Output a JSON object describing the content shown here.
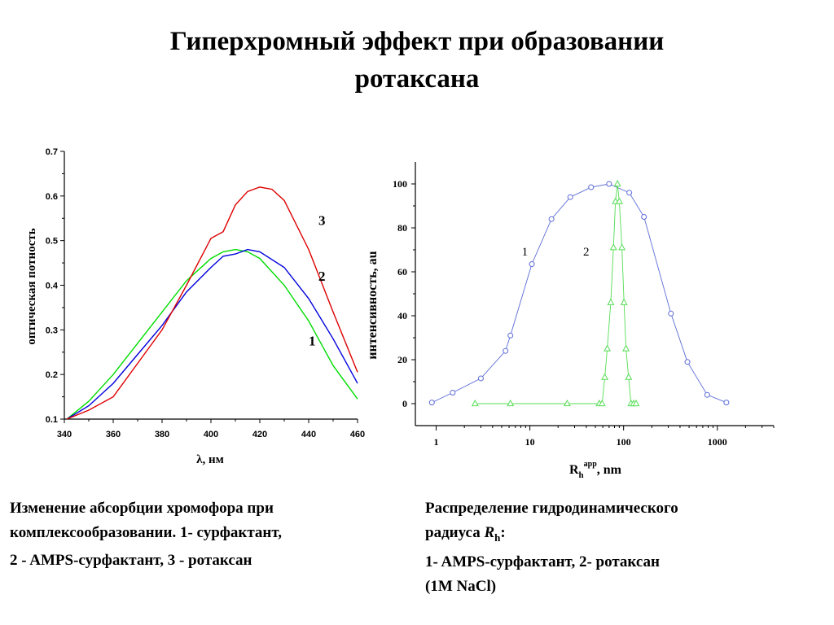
{
  "slide": {
    "title_lines": [
      "Гиперхромный эффект при образовании",
      "ротаксана"
    ],
    "caption_left": {
      "line1": "Изменение абсорбции хромофора при",
      "line2": "комплексообразовании. 1- сурфактант,",
      "line3": "2 - AMPS-сурфактант, 3 - ротаксан"
    },
    "caption_right": {
      "line1": "Распределение гидродинамического",
      "line2_prefix": "радиуса ",
      "line2_symbol": "R",
      "line2_sub": "h",
      "line2_suffix": ":",
      "line3": "1- AMPS-сурфактант, 2- ротаксан",
      "line4": "(1M NaCl)"
    }
  },
  "chart_data": [
    {
      "type": "line",
      "xlabel": "λ, нм",
      "ylabel": "оптическая потность",
      "xlim": [
        340,
        460
      ],
      "ylim": [
        0.1,
        0.7
      ],
      "xticks": [
        340,
        360,
        380,
        400,
        420,
        440,
        460
      ],
      "yticks": [
        0.1,
        0.2,
        0.3,
        0.4,
        0.5,
        0.6,
        0.7
      ],
      "grid": false,
      "series": [
        {
          "name": "1",
          "color": "#00dd00",
          "x": [
            341,
            350,
            360,
            370,
            380,
            390,
            400,
            405,
            410,
            415,
            420,
            430,
            440,
            450,
            460
          ],
          "y": [
            0.1,
            0.14,
            0.2,
            0.27,
            0.34,
            0.41,
            0.46,
            0.475,
            0.48,
            0.475,
            0.46,
            0.4,
            0.32,
            0.22,
            0.145
          ]
        },
        {
          "name": "2",
          "color": "#0000dd",
          "x": [
            341,
            350,
            360,
            370,
            380,
            390,
            400,
            405,
            410,
            415,
            420,
            430,
            440,
            450,
            460
          ],
          "y": [
            0.1,
            0.13,
            0.18,
            0.245,
            0.31,
            0.385,
            0.44,
            0.465,
            0.47,
            0.48,
            0.475,
            0.44,
            0.37,
            0.28,
            0.18
          ]
        },
        {
          "name": "3",
          "color": "#dd0000",
          "x": [
            341,
            350,
            360,
            370,
            380,
            390,
            400,
            405,
            410,
            415,
            420,
            425,
            430,
            440,
            450,
            460
          ],
          "y": [
            0.1,
            0.12,
            0.15,
            0.225,
            0.3,
            0.4,
            0.505,
            0.52,
            0.58,
            0.61,
            0.62,
            0.615,
            0.59,
            0.48,
            0.34,
            0.205
          ]
        }
      ],
      "annotations": [
        {
          "text": "3",
          "x": 444,
          "y": 0.535
        },
        {
          "text": "2",
          "x": 444,
          "y": 0.41
        },
        {
          "text": "1",
          "x": 440,
          "y": 0.265
        }
      ]
    },
    {
      "type": "line",
      "xlabel": "Rh app, nm",
      "xlabel_main": "R",
      "xlabel_sub": "h",
      "xlabel_sup": "app",
      "xlabel_suffix": ", nm",
      "ylabel": "интенсивность, au",
      "xscale": "log",
      "xlim": [
        0.6,
        4000
      ],
      "ylim": [
        -10,
        110
      ],
      "xticks": [
        1,
        10,
        100,
        1000
      ],
      "yticks": [
        0,
        20,
        40,
        60,
        80,
        100
      ],
      "grid": false,
      "series": [
        {
          "name": "1",
          "color": "#5b6bd6",
          "marker": "circle",
          "x": [
            0.9,
            1.5,
            3.0,
            5.5,
            6.2,
            10.5,
            17,
            27,
            45,
            70,
            115,
            165,
            320,
            480,
            780,
            1250
          ],
          "y": [
            0.5,
            5,
            11.5,
            24,
            31,
            63.5,
            84,
            94,
            98.5,
            100,
            96,
            85,
            41,
            19,
            4,
            0.5
          ]
        },
        {
          "name": "2",
          "color": "#55dd55",
          "marker": "triangle",
          "x": [
            2.6,
            6.2,
            25,
            55,
            59,
            63,
            67,
            73,
            78,
            82,
            86,
            90,
            96,
            101,
            106,
            113,
            120,
            128,
            136
          ],
          "y": [
            0,
            0,
            0,
            0,
            0,
            12,
            25,
            46,
            71,
            92,
            100,
            92,
            71,
            46,
            25,
            12,
            0,
            0,
            0
          ]
        }
      ],
      "annotations": [
        {
          "text": "1",
          "x": 8.2,
          "y": 67.5
        },
        {
          "text": "2",
          "x": 37,
          "y": 67.5
        }
      ]
    }
  ]
}
